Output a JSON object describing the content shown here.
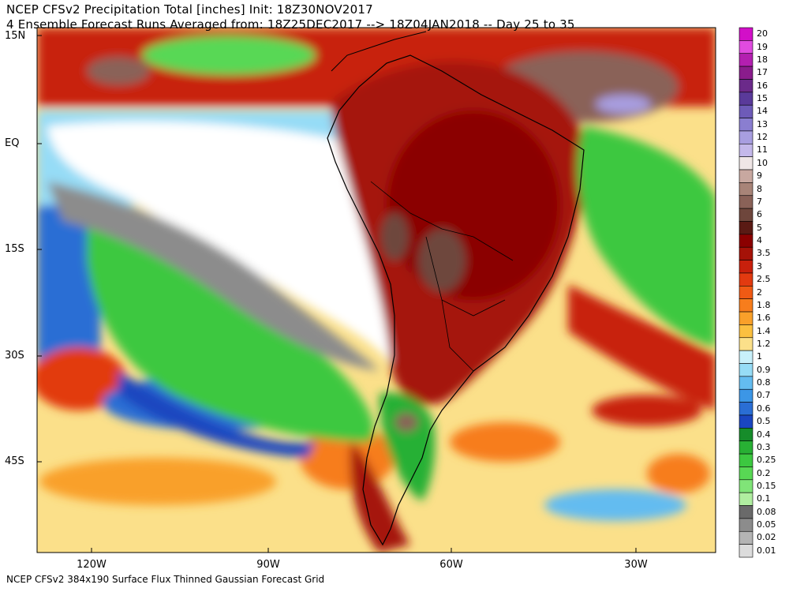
{
  "header": {
    "line1": "NCEP CFSv2 Precipitation Total [inches] Init: 18Z30NOV2017",
    "line2": "4 Ensemble Forecast Runs Averaged from: 18Z25DEC2017 --> 18Z04JAN2018 -- Day 25 to 35"
  },
  "footer": "NCEP CFSv2 384x190 Surface Flux Thinned Gaussian Forecast Grid",
  "lat_labels": [
    "15N",
    "EQ",
    "15S",
    "30S",
    "45S"
  ],
  "lon_labels": [
    "120W",
    "90W",
    "60W",
    "30W"
  ],
  "legend": {
    "labels": [
      "20",
      "19",
      "18",
      "17",
      "16",
      "15",
      "14",
      "13",
      "12",
      "11",
      "10",
      "9",
      "8",
      "7",
      "6",
      "5",
      "4",
      "3.5",
      "3",
      "2.5",
      "2",
      "1.8",
      "1.6",
      "1.4",
      "1.2",
      "1",
      "0.9",
      "0.8",
      "0.7",
      "0.6",
      "0.5",
      "0.4",
      "0.3",
      "0.25",
      "0.2",
      "0.15",
      "0.1",
      "0.08",
      "0.05",
      "0.02",
      "0.01"
    ],
    "colors": [
      "#d20fc8",
      "#e04be0",
      "#b31fb0",
      "#8a1c8c",
      "#6b2a8a",
      "#5a3a9a",
      "#6e5bb8",
      "#8a7ed0",
      "#a89ee0",
      "#c4b8ea",
      "#efe6e6",
      "#c8a8a0",
      "#a88478",
      "#8a6258",
      "#6e463c",
      "#5a1a14",
      "#8b0000",
      "#a51208",
      "#c8200c",
      "#e23a10",
      "#f05a14",
      "#f77d1c",
      "#f9a02a",
      "#fbc040",
      "#fbe08a",
      "#c8f0fa",
      "#96dcf6",
      "#64bcf0",
      "#3c96e6",
      "#2a6ed4",
      "#1a46c0",
      "#168c2a",
      "#28b034",
      "#3cc840",
      "#58d854",
      "#80e478",
      "#b0eea0",
      "#6a6a6a",
      "#8c8c8c",
      "#b4b4b4",
      "#dcdcdc"
    ]
  },
  "map_colors": {
    "ocean_background": "#fbe08a",
    "dry": "#ffffff",
    "coast": "#000000"
  }
}
